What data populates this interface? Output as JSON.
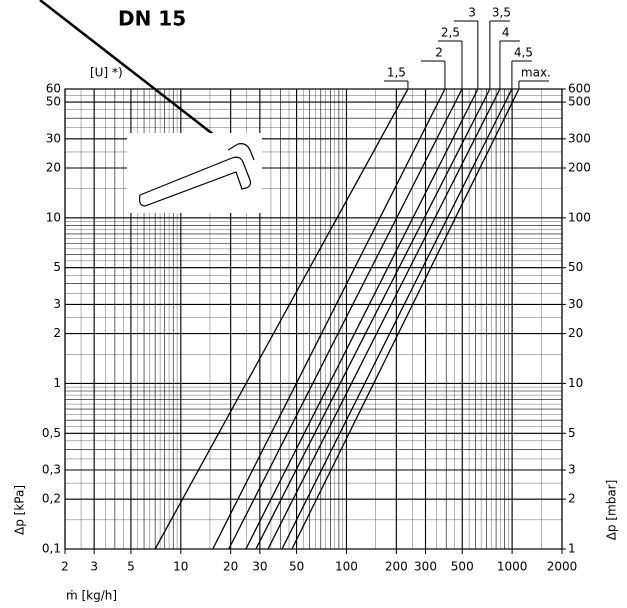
{
  "chart_data": {
    "type": "line",
    "title": "DN 15",
    "unit_label": "[U] *)",
    "xlabel": "ṁ [kg/h]",
    "ylabel": "Δp [kPa]",
    "y2label": "Δp [mbar]",
    "xscale": "log",
    "yscale": "log",
    "grid": true,
    "xlim": [
      2,
      2000
    ],
    "ylim": [
      0.1,
      60
    ],
    "y2lim": [
      1,
      600
    ],
    "xticks": [
      2,
      3,
      5,
      10,
      20,
      30,
      50,
      100,
      200,
      300,
      500,
      1000,
      2000
    ],
    "yticks": [
      {
        "value": 0.1,
        "label": "0,1"
      },
      {
        "value": 0.2,
        "label": "0,2"
      },
      {
        "value": 0.3,
        "label": "0,3"
      },
      {
        "value": 0.5,
        "label": "0,5"
      },
      1,
      2,
      3,
      5,
      10,
      20,
      30,
      50,
      60
    ],
    "y2ticks": [
      1,
      2,
      3,
      5,
      10,
      20,
      30,
      50,
      100,
      200,
      300,
      500,
      600
    ],
    "series": [
      {
        "name": "1,5",
        "color": "#000000",
        "x": [
          7,
          235
        ],
        "values": [
          0.1,
          60
        ]
      },
      {
        "name": "2",
        "color": "#000000",
        "x": [
          15.6,
          393
        ],
        "values": [
          0.1,
          60
        ]
      },
      {
        "name": "2,5",
        "color": "#000000",
        "x": [
          19.5,
          498
        ],
        "values": [
          0.1,
          60
        ]
      },
      {
        "name": "3",
        "color": "#000000",
        "x": [
          24.7,
          621
        ],
        "values": [
          0.1,
          60
        ]
      },
      {
        "name": "3,5",
        "color": "#000000",
        "x": [
          28.4,
          734
        ],
        "values": [
          0.1,
          60
        ]
      },
      {
        "name": "4",
        "color": "#000000",
        "x": [
          33.6,
          844
        ],
        "values": [
          0.1,
          60
        ]
      },
      {
        "name": "4,5",
        "color": "#000000",
        "x": [
          40.8,
          997
        ],
        "values": [
          0.1,
          60
        ]
      },
      {
        "name": "max.",
        "color": "#000000",
        "x": [
          46.9,
          1099
        ],
        "values": [
          0.1,
          60
        ]
      }
    ]
  }
}
